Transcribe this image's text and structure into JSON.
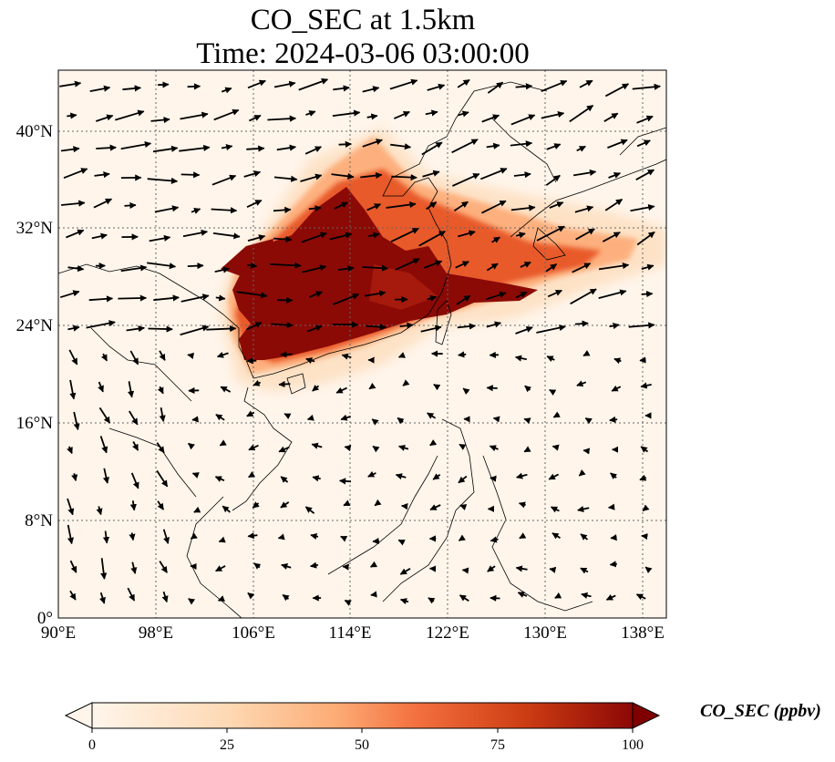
{
  "title": {
    "line1": "CO_SEC at 1.5km",
    "line2": "Time: 2024-03-06 03:00:00"
  },
  "map": {
    "lon_range": [
      90,
      140
    ],
    "lat_range": [
      0,
      45
    ],
    "lon_ticks": [
      "90°E",
      "98°E",
      "106°E",
      "114°E",
      "122°E",
      "130°E",
      "138°E"
    ],
    "lat_ticks": [
      "0°",
      "8°N",
      "16°N",
      "24°N",
      "32°N",
      "40°N"
    ],
    "gridlines": true,
    "field": "CO_SEC concentration",
    "overlay": "wind vectors",
    "coastline": true
  },
  "colorbar": {
    "label": "CO_SEC (ppbv)",
    "ticks": [
      "0",
      "25",
      "50",
      "75",
      "100"
    ],
    "range": [
      0,
      100
    ],
    "extend": "both",
    "colors": [
      "#fff5eb",
      "#fdd9b4",
      "#fdac76",
      "#f3703f",
      "#cd3d14",
      "#8c0805",
      "#7f0000"
    ]
  }
}
